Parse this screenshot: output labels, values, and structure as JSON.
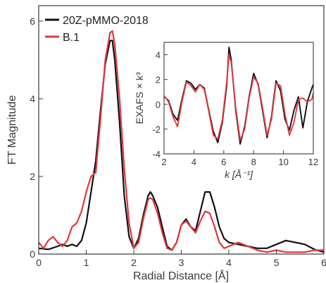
{
  "colors": {
    "black": "#111111",
    "red": "#e0393e",
    "axis": "#3a3a3a"
  },
  "chart_data": [
    {
      "type": "line",
      "title": "",
      "xlabel": "Radial Distance [Å]",
      "ylabel": "FT Magnitude",
      "xlim": [
        0,
        6
      ],
      "ylim": [
        0,
        6.4
      ],
      "xticks": [
        "0",
        "1",
        "2",
        "3",
        "4",
        "5",
        "6"
      ],
      "yticks": [
        "0",
        "2",
        "4",
        "6"
      ],
      "grid": false,
      "legend_position": "top-left",
      "series": [
        {
          "name": "20Z-pMMO-2018",
          "color": "#111111",
          "x": [
            0,
            0.2,
            0.4,
            0.5,
            0.6,
            0.7,
            0.8,
            0.9,
            1.0,
            1.1,
            1.2,
            1.3,
            1.4,
            1.5,
            1.55,
            1.6,
            1.7,
            1.8,
            1.9,
            2.0,
            2.1,
            2.2,
            2.3,
            2.35,
            2.4,
            2.5,
            2.6,
            2.7,
            2.8,
            2.9,
            3.0,
            3.1,
            3.2,
            3.3,
            3.4,
            3.5,
            3.6,
            3.7,
            3.8,
            3.9,
            4.0,
            4.2,
            4.4,
            4.6,
            4.8,
            5.0,
            5.2,
            5.4,
            5.6,
            5.8,
            6.0
          ],
          "y": [
            0.15,
            0.12,
            0.2,
            0.25,
            0.2,
            0.25,
            0.2,
            0.35,
            0.8,
            1.6,
            2.4,
            3.7,
            4.9,
            5.5,
            5.5,
            5.0,
            3.4,
            1.5,
            0.45,
            0.15,
            0.4,
            1.0,
            1.5,
            1.6,
            1.5,
            1.2,
            0.7,
            0.2,
            0.1,
            0.3,
            0.75,
            0.9,
            0.7,
            0.6,
            1.1,
            1.6,
            1.6,
            1.2,
            0.7,
            0.4,
            0.3,
            0.25,
            0.2,
            0.15,
            0.15,
            0.25,
            0.35,
            0.3,
            0.25,
            0.12,
            0.05
          ]
        },
        {
          "name": "B.1",
          "color": "#e0393e",
          "x": [
            0,
            0.1,
            0.2,
            0.3,
            0.4,
            0.5,
            0.6,
            0.7,
            0.8,
            0.9,
            1.0,
            1.1,
            1.2,
            1.3,
            1.4,
            1.5,
            1.55,
            1.6,
            1.7,
            1.8,
            1.9,
            2.0,
            2.1,
            2.2,
            2.3,
            2.35,
            2.4,
            2.5,
            2.6,
            2.7,
            2.8,
            2.9,
            3.0,
            3.1,
            3.2,
            3.3,
            3.4,
            3.5,
            3.6,
            3.7,
            3.8,
            3.9,
            4.0,
            4.2,
            4.4,
            4.6,
            4.8,
            5.0,
            5.2,
            5.4,
            5.6,
            5.8,
            6.0
          ],
          "y": [
            0.3,
            0.15,
            0.35,
            0.45,
            0.3,
            0.2,
            0.35,
            0.7,
            0.8,
            1.1,
            1.6,
            2.0,
            2.1,
            3.5,
            5.0,
            5.7,
            5.75,
            5.4,
            4.0,
            2.2,
            0.8,
            0.15,
            0.3,
            0.9,
            1.4,
            1.45,
            1.4,
            1.05,
            0.55,
            0.15,
            0.1,
            0.3,
            0.75,
            0.85,
            0.7,
            0.55,
            0.85,
            1.1,
            1.05,
            0.7,
            0.3,
            0.15,
            0.2,
            0.3,
            0.2,
            0.1,
            0.05,
            0.1,
            0.05,
            0.05,
            0.05,
            0.1,
            0.1
          ]
        }
      ]
    },
    {
      "type": "line",
      "title": "",
      "xlabel": "k [Å⁻¹]",
      "ylabel": "EXAFS × k³",
      "xlim": [
        2,
        12
      ],
      "ylim": [
        -4,
        5
      ],
      "xticks": [
        "2",
        "4",
        "6",
        "8",
        "10",
        "12"
      ],
      "yticks": [
        "4",
        "2",
        "0",
        "-2",
        "-4"
      ],
      "grid": false,
      "legend_position": "none",
      "series": [
        {
          "name": "20Z-pMMO-2018",
          "color": "#111111",
          "x": [
            2.0,
            2.3,
            2.6,
            2.9,
            3.2,
            3.5,
            3.8,
            4.1,
            4.4,
            4.7,
            5.0,
            5.3,
            5.6,
            5.9,
            6.2,
            6.35,
            6.5,
            6.8,
            7.1,
            7.4,
            7.7,
            8.0,
            8.3,
            8.6,
            8.9,
            9.2,
            9.5,
            9.8,
            10.1,
            10.4,
            10.7,
            11.0,
            11.3,
            11.6,
            11.9,
            12.0
          ],
          "y": [
            0.6,
            0.3,
            -0.8,
            -1.3,
            0.4,
            1.9,
            1.7,
            1.2,
            1.6,
            1.3,
            -0.5,
            -2.2,
            -3.1,
            -1.5,
            1.5,
            4.6,
            3.6,
            -0.5,
            -3.2,
            -1.8,
            0.6,
            2.5,
            1.6,
            -0.5,
            -2.7,
            -1.0,
            1.9,
            1.1,
            -1.2,
            -2.1,
            -0.5,
            0.6,
            -1.9,
            0.2,
            1.3,
            1.6
          ]
        },
        {
          "name": "B.1",
          "color": "#e0393e",
          "x": [
            2.0,
            2.3,
            2.6,
            2.9,
            3.2,
            3.5,
            3.8,
            4.1,
            4.4,
            4.7,
            5.0,
            5.3,
            5.6,
            5.9,
            6.2,
            6.35,
            6.5,
            6.8,
            7.1,
            7.4,
            7.7,
            8.0,
            8.3,
            8.6,
            8.9,
            9.2,
            9.5,
            9.8,
            10.1,
            10.4,
            10.7,
            11.0,
            11.3,
            11.6,
            11.9,
            12.0
          ],
          "y": [
            0.7,
            0.2,
            -1.0,
            -1.8,
            0.2,
            1.8,
            1.5,
            1.0,
            1.6,
            1.2,
            -0.6,
            -2.5,
            -2.8,
            -1.3,
            1.8,
            4.0,
            3.4,
            -0.3,
            -2.9,
            -2.0,
            0.5,
            2.2,
            1.7,
            -0.3,
            -2.5,
            -1.2,
            1.7,
            1.5,
            -0.8,
            -2.5,
            -1.5,
            0.4,
            0.5,
            0.2,
            0.4,
            0.9
          ]
        }
      ]
    }
  ]
}
